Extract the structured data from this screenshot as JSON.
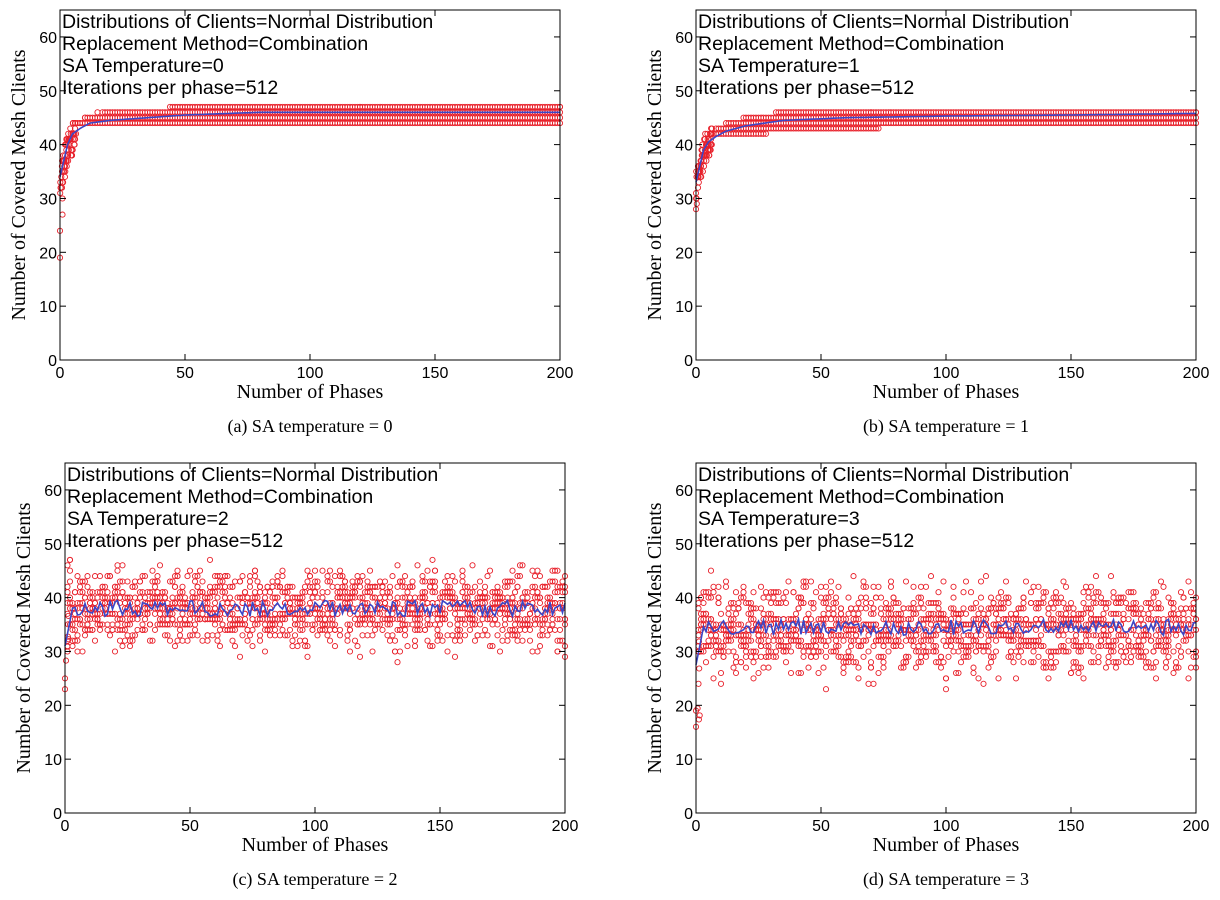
{
  "chart_data": [
    {
      "type": "scatter",
      "panel": "a",
      "caption": "(a) SA temperature = 0",
      "xlabel": "Number of Phases",
      "ylabel": "Number of Covered Mesh Clients",
      "annotations": [
        "Distributions of Clients=Normal Distribution",
        "Replacement Method=Combination",
        "SA Temperature=0",
        "Iterations per phase=512"
      ],
      "xlim": [
        0,
        200
      ],
      "ylim": [
        0,
        65
      ],
      "xticks": [
        0,
        50,
        100,
        150,
        200
      ],
      "yticks": [
        0,
        10,
        20,
        30,
        40,
        50,
        60
      ],
      "series": [
        {
          "kind": "scatter",
          "color": "#e8202a",
          "description_points": [
            [
              0,
              19
            ],
            [
              0,
              24
            ],
            [
              1,
              27
            ],
            [
              1,
              30
            ],
            [
              1,
              33
            ],
            [
              2,
              34
            ],
            [
              2,
              36
            ],
            [
              3,
              38
            ],
            [
              3,
              40
            ],
            [
              4,
              41
            ],
            [
              5,
              42
            ],
            [
              6,
              43
            ],
            [
              8,
              44
            ],
            [
              10,
              45
            ],
            [
              15,
              46
            ],
            [
              50,
              46
            ],
            [
              100,
              46
            ],
            [
              120,
              47
            ],
            [
              200,
              47
            ]
          ]
        },
        {
          "kind": "line",
          "color": "#3b46c6",
          "x": [
            0,
            1,
            2,
            3,
            5,
            8,
            12,
            20,
            35,
            50,
            80,
            120,
            160,
            200
          ],
          "y": [
            34,
            36,
            38,
            40,
            42,
            43,
            44,
            44.5,
            45,
            45.5,
            46,
            46,
            46,
            46
          ]
        }
      ],
      "scatter_band": {
        "min_y_early": 19,
        "settled_low": 44,
        "settled_high": 47,
        "late_low": 45,
        "noise": "low"
      }
    },
    {
      "type": "scatter",
      "panel": "b",
      "caption": "(b) SA temperature = 1",
      "xlabel": "Number of Phases",
      "ylabel": "Number of Covered Mesh Clients",
      "annotations": [
        "Distributions of Clients=Normal Distribution",
        "Replacement Method=Combination",
        "SA Temperature=1",
        "Iterations per phase=512"
      ],
      "xlim": [
        0,
        200
      ],
      "ylim": [
        0,
        65
      ],
      "xticks": [
        0,
        50,
        100,
        150,
        200
      ],
      "yticks": [
        0,
        10,
        20,
        30,
        40,
        50,
        60
      ],
      "series": [
        {
          "kind": "scatter",
          "color": "#e8202a",
          "description_points": [
            [
              0,
              28
            ],
            [
              0,
              31
            ],
            [
              1,
              34
            ],
            [
              2,
              36
            ],
            [
              3,
              38
            ],
            [
              4,
              40
            ],
            [
              6,
              41
            ],
            [
              8,
              42
            ],
            [
              12,
              43
            ],
            [
              20,
              44
            ],
            [
              40,
              45
            ],
            [
              70,
              46
            ],
            [
              200,
              46
            ]
          ]
        },
        {
          "kind": "line",
          "color": "#3b46c6",
          "x": [
            0,
            1,
            2,
            3,
            5,
            8,
            12,
            20,
            35,
            60,
            100,
            150,
            200
          ],
          "y": [
            33,
            35,
            37,
            39,
            40.5,
            41.5,
            42.5,
            43.5,
            44.5,
            45,
            45.3,
            45.5,
            45.8
          ]
        }
      ],
      "scatter_band": {
        "min_y_early": 28,
        "settled_low": 42,
        "settled_high": 46,
        "late_low": 45,
        "noise": "low"
      }
    },
    {
      "type": "scatter",
      "panel": "c",
      "caption": "(c) SA temperature = 2",
      "xlabel": "Number of Phases",
      "ylabel": "Number of Covered Mesh Clients",
      "annotations": [
        "Distributions of Clients=Normal Distribution",
        "Replacement Method=Combination",
        "SA Temperature=2",
        "Iterations per phase=512"
      ],
      "xlim": [
        0,
        200
      ],
      "ylim": [
        0,
        65
      ],
      "xticks": [
        0,
        50,
        100,
        150,
        200
      ],
      "yticks": [
        0,
        10,
        20,
        30,
        40,
        50,
        60
      ],
      "series": [
        {
          "kind": "scatter",
          "color": "#e8202a",
          "description_points": [
            [
              0,
              23
            ],
            [
              0,
              25
            ],
            [
              1,
              30
            ],
            [
              2,
              43
            ],
            [
              60,
              44
            ],
            [
              80,
              30
            ],
            [
              200,
              35
            ]
          ]
        },
        {
          "kind": "line",
          "color": "#3b46c6",
          "mean": 38,
          "amplitude": 1.5
        }
      ],
      "scatter_band": {
        "min_y_early": 23,
        "center": 38,
        "spread": 3.5,
        "outlier_low": 30,
        "outlier_high": 44,
        "noise": "high"
      }
    },
    {
      "type": "scatter",
      "panel": "d",
      "caption": "(d) SA temperature = 3",
      "xlabel": "Number of Phases",
      "ylabel": "Number of Covered Mesh Clients",
      "annotations": [
        "Distributions of Clients=Normal Distribution",
        "Replacement Method=Combination",
        "SA Temperature=3",
        "Iterations per phase=512"
      ],
      "xlim": [
        0,
        200
      ],
      "ylim": [
        0,
        65
      ],
      "xticks": [
        0,
        50,
        100,
        150,
        200
      ],
      "yticks": [
        0,
        10,
        20,
        30,
        40,
        50,
        60
      ],
      "series": [
        {
          "kind": "scatter",
          "color": "#e8202a",
          "description_points": [
            [
              0,
              16
            ],
            [
              0,
              19
            ],
            [
              1,
              24
            ],
            [
              2,
              40
            ],
            [
              50,
              42
            ],
            [
              100,
              23
            ],
            [
              200,
              27
            ]
          ]
        },
        {
          "kind": "line",
          "color": "#3b46c6",
          "mean": 34.5,
          "amplitude": 1.5
        }
      ],
      "scatter_band": {
        "min_y_early": 16,
        "center": 34,
        "spread": 4,
        "outlier_low": 23,
        "outlier_high": 42,
        "noise": "high"
      }
    }
  ]
}
